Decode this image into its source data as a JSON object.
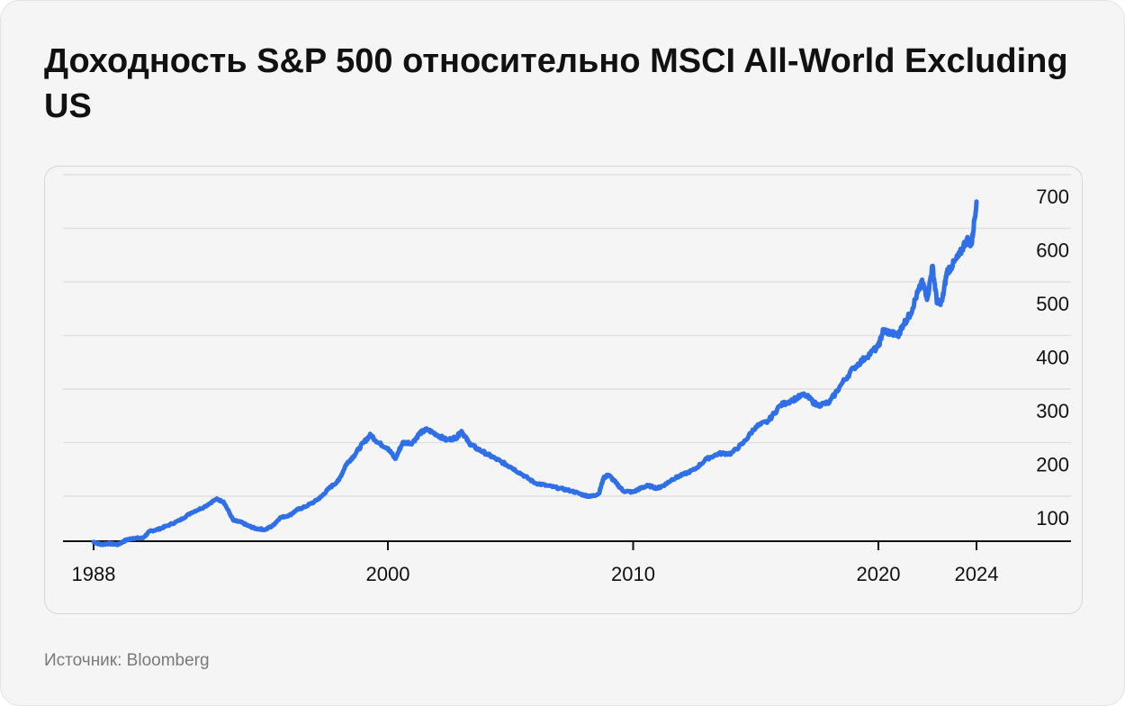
{
  "title": "Доходность S&P 500 относительно MSCI All-World Excluding US",
  "source": "Источник: Bloomberg",
  "colors": {
    "line": "#2f6fe8",
    "grid": "#e0e0e0",
    "axis": "#111111"
  },
  "chart_data": {
    "type": "line",
    "title": "Доходность S&P 500 относительно MSCI All-World Excluding US",
    "xlabel": "",
    "ylabel": "",
    "xlim": [
      1988,
      2024
    ],
    "ylim": [
      45,
      710
    ],
    "y_ticks": [
      100,
      200,
      300,
      400,
      500,
      600,
      700
    ],
    "x_ticks": [
      {
        "value": 1988,
        "label": "1988"
      },
      {
        "value": 2000,
        "label": "2000"
      },
      {
        "value": 2010,
        "label": "2010"
      },
      {
        "value": 2020,
        "label": "2020"
      },
      {
        "value": 2024,
        "label": "2024"
      }
    ],
    "grid": true,
    "y_axis_side": "right",
    "series": [
      {
        "x": [
          1988.0,
          1988.3,
          1988.6,
          1989.0,
          1989.3,
          1989.6,
          1990.0,
          1990.3,
          1990.6,
          1991.0,
          1991.5,
          1992.0,
          1992.5,
          1993.0,
          1993.3,
          1993.7,
          1994.0,
          1994.3,
          1994.6,
          1995.0,
          1995.3,
          1995.6,
          1996.0,
          1996.3,
          1996.6,
          1997.0,
          1997.3,
          1997.6,
          1998.0,
          1998.3,
          1998.6,
          1999.0,
          1999.3,
          1999.6,
          2000.0,
          2000.3,
          2000.6,
          2001.0,
          2001.3,
          2001.6,
          2002.0,
          2002.4,
          2002.8,
          2003.0,
          2003.3,
          2003.6,
          2004.0,
          2004.4,
          2004.8,
          2005.0,
          2005.5,
          2006.0,
          2006.5,
          2007.0,
          2007.5,
          2008.0,
          2008.3,
          2008.6,
          2008.8,
          2009.0,
          2009.3,
          2009.6,
          2010.0,
          2010.3,
          2010.6,
          2011.0,
          2011.3,
          2011.6,
          2012.0,
          2012.5,
          2013.0,
          2013.5,
          2014.0,
          2014.5,
          2015.0,
          2015.5,
          2016.0,
          2016.5,
          2017.0,
          2017.5,
          2018.0,
          2018.5,
          2019.0,
          2019.5,
          2020.0,
          2020.2,
          2020.5,
          2020.8,
          2021.0,
          2021.3,
          2021.6,
          2021.8,
          2022.0,
          2022.2,
          2022.4,
          2022.6,
          2022.8,
          2023.0,
          2023.3,
          2023.6,
          2023.8,
          2024.0
        ],
        "y": [
          55,
          50,
          52,
          50,
          58,
          62,
          62,
          75,
          78,
          85,
          95,
          110,
          120,
          135,
          130,
          95,
          92,
          85,
          80,
          78,
          85,
          100,
          105,
          115,
          120,
          130,
          140,
          155,
          170,
          200,
          215,
          240,
          255,
          240,
          230,
          210,
          240,
          240,
          258,
          265,
          255,
          245,
          250,
          262,
          240,
          230,
          220,
          210,
          200,
          195,
          180,
          165,
          160,
          155,
          150,
          142,
          140,
          145,
          175,
          180,
          165,
          150,
          148,
          155,
          160,
          155,
          162,
          172,
          180,
          190,
          210,
          220,
          220,
          240,
          270,
          280,
          310,
          320,
          330,
          310,
          315,
          350,
          380,
          400,
          420,
          450,
          445,
          440,
          460,
          480,
          520,
          540,
          510,
          570,
          500,
          505,
          560,
          570,
          590,
          620,
          610,
          690
        ]
      }
    ]
  }
}
